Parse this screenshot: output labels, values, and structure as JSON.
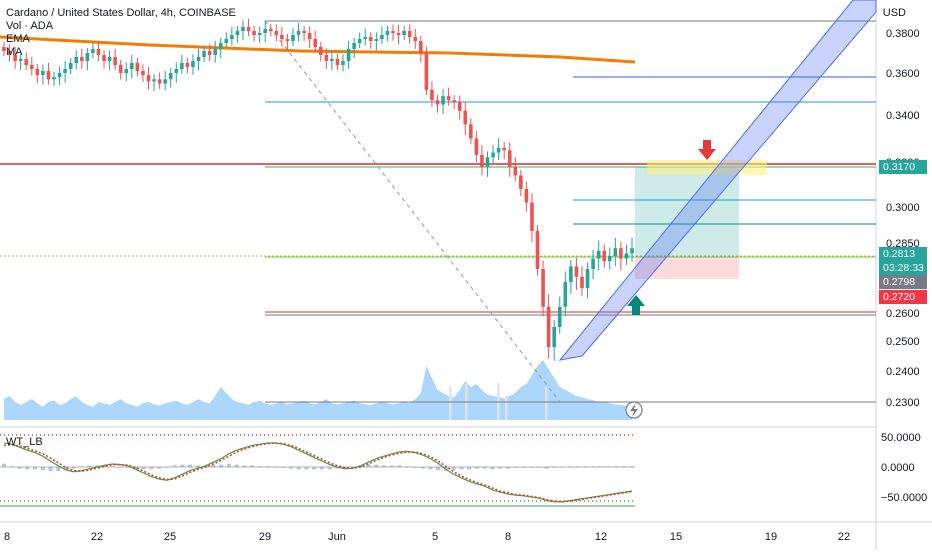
{
  "legend": {
    "title": "Cardano / United States Dollar, 4h, COINBASE",
    "line_vol": "Vol · ADA",
    "line_ema": "EMA",
    "line_ma": "MA"
  },
  "oscillator": {
    "label": "WT_LB"
  },
  "price_axis": {
    "currency": "USD",
    "ticks": [
      "0.3800",
      "0.3600",
      "0.3400",
      "0.3200",
      "0.3000",
      "0.2850",
      "0.2700",
      "0.2600",
      "0.2500",
      "0.2400",
      "0.2300"
    ]
  },
  "osc_axis": {
    "ticks": [
      "50.0000",
      "0.0000",
      "−50.0000"
    ]
  },
  "time_axis": {
    "ticks": [
      "8",
      "22",
      "25",
      "29",
      "Jun",
      "5",
      "8",
      "12",
      "15",
      "19",
      "22"
    ]
  },
  "price_tags": {
    "target": "0.3170",
    "last": "0.2813",
    "countdown": "03:28:33",
    "entry": "0.2798",
    "stop": "0.2720"
  },
  "colors": {
    "bull": "#26a69a",
    "bear": "#ef5350",
    "ema": "#f57c00",
    "channel": "#4c6ef5",
    "target_tag": "#26a69a",
    "last_tag": "#26a69a",
    "entry_tag": "#787b86",
    "stop_tag": "#f23645"
  },
  "chart_data": {
    "type": "candlestick",
    "title": "Cardano / United States Dollar, 4h, COINBASE",
    "y_unit": "USD",
    "ylim": [
      0.228,
      0.388
    ],
    "x_ticks": [
      "8",
      "22",
      "25",
      "29",
      "Jun",
      "5",
      "8",
      "12",
      "15",
      "19",
      "22"
    ],
    "close_series": [
      0.371,
      0.369,
      0.366,
      0.367,
      0.364,
      0.362,
      0.359,
      0.361,
      0.357,
      0.358,
      0.36,
      0.362,
      0.365,
      0.368,
      0.366,
      0.37,
      0.372,
      0.369,
      0.366,
      0.368,
      0.364,
      0.36,
      0.362,
      0.365,
      0.361,
      0.359,
      0.356,
      0.357,
      0.355,
      0.357,
      0.36,
      0.362,
      0.365,
      0.363,
      0.366,
      0.368,
      0.371,
      0.369,
      0.372,
      0.375,
      0.377,
      0.379,
      0.381,
      0.383,
      0.381,
      0.379,
      0.38,
      0.382,
      0.381,
      0.379,
      0.377,
      0.376,
      0.379,
      0.381,
      0.38,
      0.377,
      0.373,
      0.369,
      0.366,
      0.367,
      0.364,
      0.366,
      0.372,
      0.375,
      0.377,
      0.378,
      0.376,
      0.377,
      0.379,
      0.381,
      0.38,
      0.379,
      0.381,
      0.378,
      0.376,
      0.37,
      0.352,
      0.347,
      0.345,
      0.349,
      0.347,
      0.346,
      0.342,
      0.336,
      0.33,
      0.323,
      0.318,
      0.322,
      0.324,
      0.326,
      0.325,
      0.318,
      0.314,
      0.308,
      0.302,
      0.29,
      0.275,
      0.262,
      0.248,
      0.255,
      0.262,
      0.27,
      0.276,
      0.272,
      0.268,
      0.275,
      0.279,
      0.282,
      0.278,
      0.28,
      0.283,
      0.279,
      0.281,
      0.283
    ],
    "volume_series": [
      0.35,
      0.4,
      0.3,
      0.25,
      0.3,
      0.35,
      0.28,
      0.22,
      0.3,
      0.33,
      0.25,
      0.28,
      0.35,
      0.4,
      0.3,
      0.25,
      0.22,
      0.3,
      0.28,
      0.25,
      0.3,
      0.35,
      0.28,
      0.25,
      0.22,
      0.28,
      0.3,
      0.26,
      0.24,
      0.28,
      0.3,
      0.32,
      0.28,
      0.25,
      0.3,
      0.35,
      0.3,
      0.28,
      0.4,
      0.55,
      0.45,
      0.35,
      0.3,
      0.28,
      0.25,
      0.3,
      0.32,
      0.28,
      0.25,
      0.28,
      0.3,
      0.26,
      0.28,
      0.3,
      0.32,
      0.28,
      0.26,
      0.3,
      0.35,
      0.28,
      0.26,
      0.28,
      0.3,
      0.32,
      0.28,
      0.26,
      0.25,
      0.28,
      0.3,
      0.28,
      0.26,
      0.28,
      0.3,
      0.28,
      0.35,
      0.45,
      0.9,
      0.7,
      0.5,
      0.45,
      0.4,
      0.38,
      0.5,
      0.65,
      0.55,
      0.6,
      0.5,
      0.42,
      0.4,
      0.38,
      0.36,
      0.4,
      0.45,
      0.55,
      0.6,
      0.75,
      0.9,
      1.0,
      0.85,
      0.7,
      0.55,
      0.5,
      0.45,
      0.4,
      0.38,
      0.35,
      0.33,
      0.3,
      0.3,
      0.28,
      0.26,
      0.25,
      0.24,
      0.24
    ],
    "levels": {
      "target": 0.317,
      "last": 0.2813,
      "entry": 0.2798,
      "stop": 0.272,
      "support": 0.259
    },
    "indicators": [
      "Vol · ADA",
      "EMA",
      "MA",
      "WT_LB"
    ],
    "osc_ylim": [
      -65,
      65
    ],
    "osc_wt1": [
      40,
      38,
      33,
      28,
      24,
      18,
      10,
      2,
      -5,
      -8,
      -6,
      -3,
      0,
      3,
      5,
      4,
      2,
      -4,
      -10,
      -16,
      -20,
      -22,
      -18,
      -12,
      -6,
      -2,
      2,
      8,
      14,
      22,
      28,
      32,
      36,
      38,
      40,
      40,
      38,
      34,
      28,
      22,
      16,
      10,
      4,
      0,
      -3,
      -2,
      2,
      8,
      14,
      18,
      22,
      25,
      26,
      24,
      20,
      14,
      6,
      -4,
      -12,
      -18,
      -24,
      -28,
      -32,
      -38,
      -42,
      -45,
      -47,
      -48,
      -50,
      -52,
      -56,
      -58,
      -58,
      -56,
      -54,
      -52,
      -50,
      -48,
      -46,
      -44,
      -42,
      -40
    ],
    "osc_wt2": [
      36,
      37,
      35,
      31,
      27,
      22,
      15,
      7,
      -1,
      -6,
      -7,
      -5,
      -2,
      1,
      4,
      4,
      3,
      -1,
      -7,
      -13,
      -18,
      -21,
      -20,
      -15,
      -9,
      -4,
      0,
      5,
      11,
      18,
      25,
      30,
      34,
      37,
      39,
      40,
      39,
      36,
      31,
      25,
      19,
      13,
      7,
      2,
      -1,
      -2,
      0,
      5,
      11,
      16,
      20,
      23,
      25,
      25,
      22,
      17,
      10,
      1,
      -8,
      -15,
      -21,
      -26,
      -30,
      -35,
      -40,
      -43,
      -46,
      -47,
      -49,
      -51,
      -54,
      -57,
      -58,
      -57,
      -55,
      -53,
      -51,
      -49,
      -47,
      -45,
      -43,
      -41
    ]
  }
}
